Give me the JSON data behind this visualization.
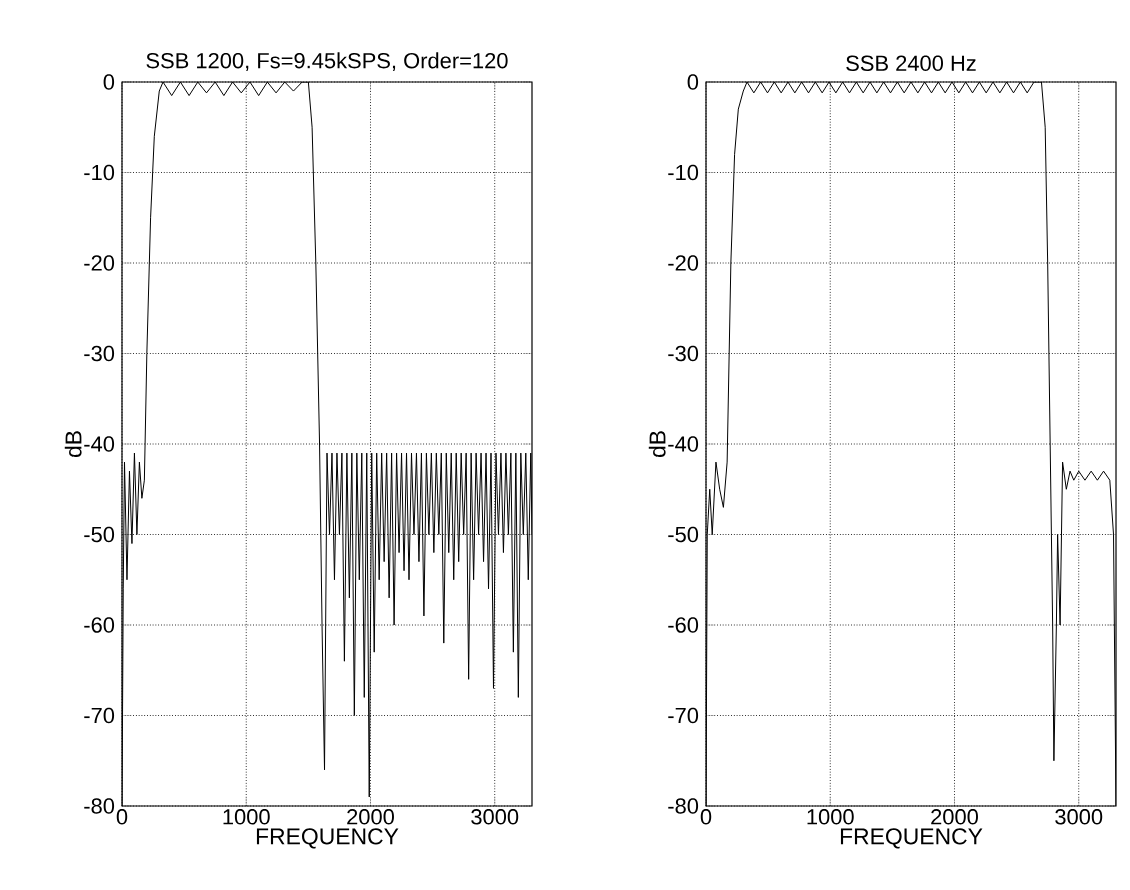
{
  "chart_data": [
    {
      "type": "line",
      "title": "SSB 1200, Fs=9.45kSPS, Order=120",
      "xlabel": "FREQUENCY",
      "ylabel": "dB",
      "color": "#000000",
      "grid": true,
      "xlim": [
        0,
        3300
      ],
      "ylim": [
        -80,
        0
      ],
      "xticks": [
        0,
        1000,
        2000,
        3000
      ],
      "yticks": [
        -80,
        -70,
        -60,
        -50,
        -40,
        -30,
        -20,
        -10,
        0
      ],
      "x": [
        0,
        10,
        20,
        40,
        60,
        80,
        100,
        120,
        140,
        160,
        180,
        200,
        230,
        260,
        300,
        330,
        400,
        470,
        540,
        610,
        680,
        750,
        820,
        890,
        960,
        1030,
        1100,
        1170,
        1240,
        1310,
        1380,
        1450,
        1500,
        1530,
        1560,
        1590,
        1610,
        1630,
        1650,
        1670,
        1690,
        1710,
        1730,
        1750,
        1770,
        1790,
        1810,
        1830,
        1850,
        1870,
        1890,
        1910,
        1930,
        1950,
        1970,
        1990,
        2010,
        2030,
        2050,
        2070,
        2090,
        2110,
        2130,
        2150,
        2170,
        2190,
        2210,
        2230,
        2250,
        2270,
        2290,
        2310,
        2330,
        2350,
        2370,
        2390,
        2410,
        2430,
        2450,
        2470,
        2490,
        2510,
        2530,
        2550,
        2570,
        2590,
        2610,
        2630,
        2650,
        2670,
        2690,
        2710,
        2730,
        2750,
        2770,
        2790,
        2810,
        2830,
        2850,
        2870,
        2890,
        2910,
        2930,
        2950,
        2970,
        2990,
        3010,
        3030,
        3050,
        3070,
        3090,
        3110,
        3130,
        3150,
        3170,
        3190,
        3210,
        3230,
        3250,
        3270,
        3290,
        3300
      ],
      "values": [
        -80,
        -56,
        -42,
        -55,
        -43,
        -51,
        -41,
        -50,
        -42,
        -46,
        -44,
        -30,
        -15,
        -6,
        -1,
        0,
        -1.5,
        0,
        -1.5,
        0,
        -1.2,
        0,
        -1.5,
        0,
        -1.2,
        0,
        -1.5,
        0,
        -1.2,
        0,
        -1,
        0,
        0,
        -5,
        -20,
        -40,
        -60,
        -76,
        -41,
        -50,
        -41,
        -55,
        -41,
        -50,
        -41,
        -64,
        -41,
        -57,
        -41,
        -70,
        -41,
        -55,
        -41,
        -68,
        -41,
        -79,
        -41,
        -63,
        -41,
        -55,
        -41,
        -53,
        -41,
        -57,
        -41,
        -60,
        -41,
        -52,
        -41,
        -54,
        -41,
        -55,
        -41,
        -50,
        -41,
        -53,
        -41,
        -59,
        -41,
        -50,
        -41,
        -52,
        -41,
        -50,
        -41,
        -62,
        -41,
        -52,
        -41,
        -55,
        -41,
        -53,
        -41,
        -50,
        -41,
        -66,
        -41,
        -55,
        -41,
        -50,
        -41,
        -53,
        -41,
        -56,
        -41,
        -67,
        -41,
        -50,
        -41,
        -52,
        -41,
        -50,
        -41,
        -63,
        -41,
        -68,
        -41,
        -50,
        -41,
        -55,
        -41,
        -50
      ]
    },
    {
      "type": "line",
      "title": "SSB 2400 Hz",
      "xlabel": "FREQUENCY",
      "ylabel": "dB",
      "color": "#000000",
      "grid": true,
      "xlim": [
        0,
        3300
      ],
      "ylim": [
        -80,
        0
      ],
      "xticks": [
        0,
        1000,
        2000,
        3000
      ],
      "yticks": [
        -80,
        -70,
        -60,
        -50,
        -40,
        -30,
        -20,
        -10,
        0
      ],
      "x": [
        0,
        10,
        30,
        50,
        80,
        110,
        140,
        170,
        200,
        230,
        260,
        300,
        330,
        385,
        440,
        495,
        550,
        605,
        660,
        715,
        770,
        825,
        880,
        935,
        990,
        1045,
        1100,
        1155,
        1210,
        1265,
        1320,
        1375,
        1430,
        1485,
        1540,
        1595,
        1650,
        1705,
        1760,
        1815,
        1870,
        1925,
        1980,
        2035,
        2090,
        2145,
        2200,
        2255,
        2310,
        2365,
        2420,
        2475,
        2530,
        2585,
        2640,
        2700,
        2730,
        2750,
        2770,
        2790,
        2800,
        2820,
        2830,
        2850,
        2870,
        2900,
        2930,
        2960,
        3000,
        3050,
        3100,
        3150,
        3200,
        3250,
        3280,
        3300
      ],
      "values": [
        -80,
        -50,
        -45,
        -50,
        -42,
        -45,
        -47,
        -42,
        -20,
        -8,
        -3,
        -1,
        0,
        -1.2,
        0,
        -1.2,
        0,
        -1.2,
        0,
        -1.2,
        0,
        -1.2,
        0,
        -1.2,
        0,
        -1.2,
        0,
        -1.2,
        0,
        -1.2,
        0,
        -1.2,
        0,
        -1.2,
        0,
        -1.2,
        0,
        -1.2,
        0,
        -1.2,
        0,
        -1.2,
        0,
        -1.2,
        0,
        -1.2,
        0,
        -1.2,
        0,
        -1.2,
        0,
        -1.2,
        0,
        -1.2,
        0,
        0,
        -5,
        -20,
        -40,
        -60,
        -75,
        -60,
        -50,
        -60,
        -42,
        -45,
        -43,
        -44,
        -43,
        -44,
        -43,
        -44,
        -43,
        -44,
        -50,
        -80
      ]
    }
  ]
}
